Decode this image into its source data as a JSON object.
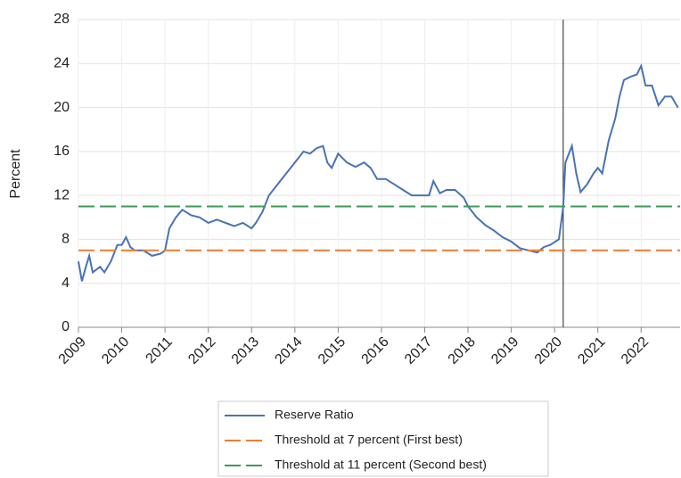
{
  "chart_data": {
    "type": "line",
    "y_label": "Percent",
    "xlim": [
      2009,
      2022.9
    ],
    "xticks": [
      2009,
      2010,
      2011,
      2012,
      2013,
      2014,
      2015,
      2016,
      2017,
      2018,
      2019,
      2020,
      2021,
      2022
    ],
    "ylim": [
      0,
      28
    ],
    "yticks": [
      0,
      4,
      8,
      12,
      16,
      20,
      24,
      28
    ],
    "grid": true,
    "vline": 2020.2,
    "series": [
      {
        "name": "Reserve Ratio",
        "color": "#4a72b5",
        "dash": false,
        "x": [
          2009.0,
          2009.08,
          2009.17,
          2009.25,
          2009.33,
          2009.5,
          2009.6,
          2009.75,
          2009.9,
          2010.0,
          2010.1,
          2010.2,
          2010.3,
          2010.5,
          2010.7,
          2010.9,
          2011.0,
          2011.1,
          2011.25,
          2011.4,
          2011.6,
          2011.8,
          2012.0,
          2012.2,
          2012.4,
          2012.6,
          2012.8,
          2013.0,
          2013.1,
          2013.25,
          2013.4,
          2013.6,
          2013.8,
          2014.0,
          2014.2,
          2014.35,
          2014.5,
          2014.65,
          2014.75,
          2014.85,
          2015.0,
          2015.2,
          2015.4,
          2015.6,
          2015.75,
          2015.9,
          2016.1,
          2016.3,
          2016.5,
          2016.7,
          2016.9,
          2017.1,
          2017.2,
          2017.35,
          2017.5,
          2017.7,
          2017.9,
          2018.0,
          2018.2,
          2018.4,
          2018.6,
          2018.8,
          2019.0,
          2019.2,
          2019.4,
          2019.6,
          2019.75,
          2019.9,
          2020.1,
          2020.2,
          2020.25,
          2020.4,
          2020.5,
          2020.6,
          2020.75,
          2020.9,
          2021.0,
          2021.1,
          2021.25,
          2021.4,
          2021.5,
          2021.6,
          2021.75,
          2021.9,
          2022.0,
          2022.1,
          2022.25,
          2022.4,
          2022.55,
          2022.7,
          2022.85
        ],
        "values": [
          6,
          4.2,
          5.5,
          6.5,
          5,
          5.5,
          5,
          6,
          7.5,
          7.5,
          8.2,
          7.3,
          7,
          7,
          6.5,
          6.7,
          7,
          9,
          10,
          10.7,
          10.2,
          10,
          9.5,
          9.8,
          9.5,
          9.2,
          9.5,
          9,
          9.5,
          10.5,
          12,
          13,
          14,
          15,
          16,
          15.8,
          16.3,
          16.5,
          15,
          14.5,
          15.8,
          15,
          14.6,
          15,
          14.5,
          13.5,
          13.5,
          13,
          12.5,
          12,
          12,
          12,
          13.3,
          12.2,
          12.5,
          12.5,
          11.8,
          11,
          10,
          9.3,
          8.8,
          8.2,
          7.8,
          7.2,
          7,
          6.8,
          7.3,
          7.5,
          8,
          11,
          15,
          16.5,
          14,
          12.3,
          13,
          14,
          14.5,
          14,
          17,
          19,
          21,
          22.5,
          22.8,
          23,
          23.8,
          22,
          22,
          20.2,
          21,
          21,
          20
        ]
      },
      {
        "name": "Threshold at 7 percent (First best)",
        "color": "#ed7d31",
        "dash": true,
        "x": [
          2009,
          2022.9
        ],
        "values": [
          7,
          7
        ]
      },
      {
        "name": "Threshold at 11 percent (Second best)",
        "color": "#3f9a5a",
        "dash": true,
        "x": [
          2009,
          2022.9
        ],
        "values": [
          11,
          11
        ]
      }
    ]
  }
}
